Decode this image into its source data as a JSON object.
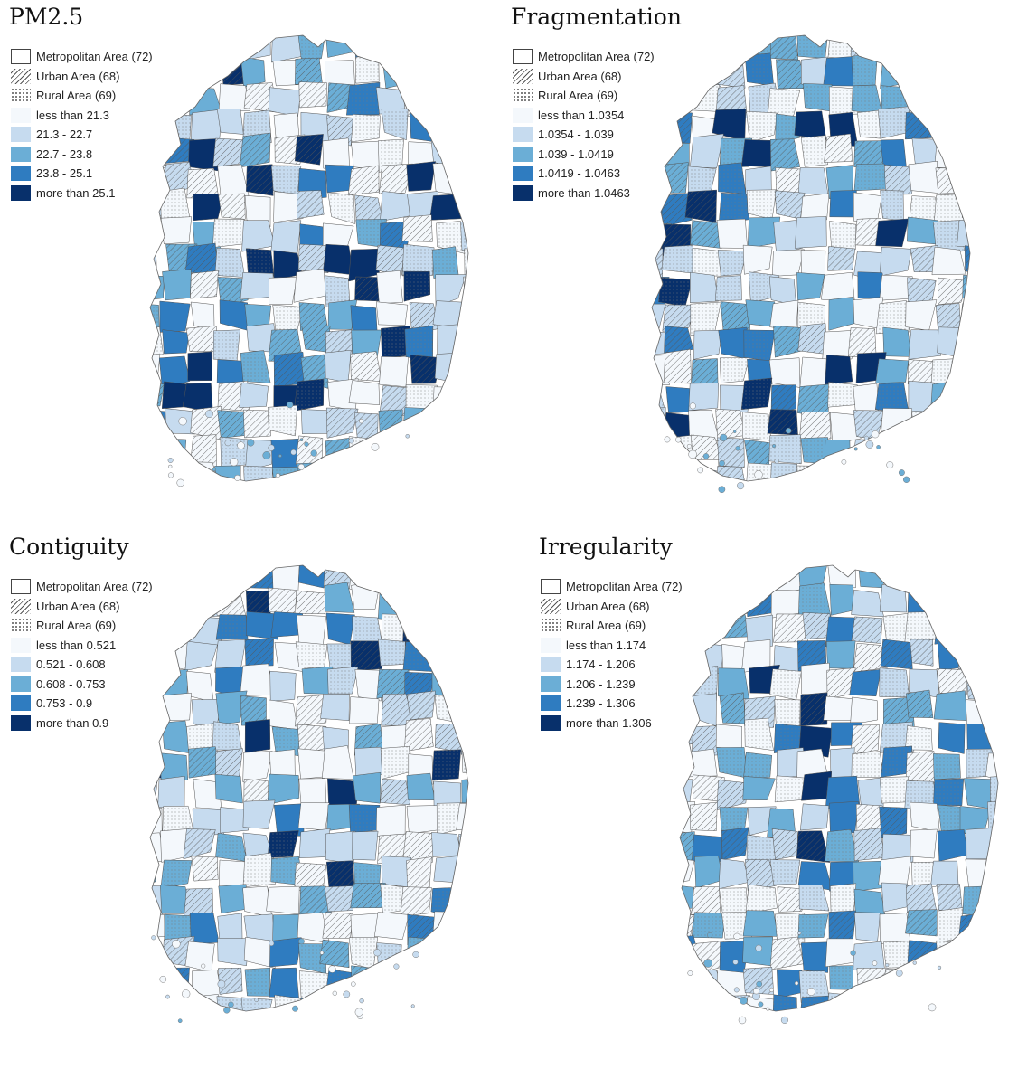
{
  "figure": {
    "panels": [
      {
        "title": "PM2.5",
        "area_legend": [
          {
            "label": "Metropolitan Area (72)",
            "pattern": "outline"
          },
          {
            "label": "Urban Area (68)",
            "pattern": "hatch"
          },
          {
            "label": "Rural Area (69)",
            "pattern": "dots"
          }
        ],
        "classes": [
          {
            "label": "less than 21.3",
            "color": "#f4f8fc"
          },
          {
            "label": "21.3 - 22.7",
            "color": "#c6dbef"
          },
          {
            "label": "22.7 - 23.8",
            "color": "#6baed6"
          },
          {
            "label": "23.8 - 25.1",
            "color": "#2f7cc0"
          },
          {
            "label": "more than 25.1",
            "color": "#08306b"
          }
        ]
      },
      {
        "title": "Fragmentation",
        "area_legend": [
          {
            "label": "Metropolitan Area (72)",
            "pattern": "outline"
          },
          {
            "label": "Urban Area (68)",
            "pattern": "hatch"
          },
          {
            "label": "Rural Area (69)",
            "pattern": "dots"
          }
        ],
        "classes": [
          {
            "label": "less than 1.0354",
            "color": "#f4f8fc"
          },
          {
            "label": "1.0354 - 1.039",
            "color": "#c6dbef"
          },
          {
            "label": "1.039 - 1.0419",
            "color": "#6baed6"
          },
          {
            "label": "1.0419 - 1.0463",
            "color": "#2f7cc0"
          },
          {
            "label": "more than 1.0463",
            "color": "#08306b"
          }
        ]
      },
      {
        "title": "Contiguity",
        "area_legend": [
          {
            "label": "Metropolitan Area (72)",
            "pattern": "outline"
          },
          {
            "label": "Urban Area (68)",
            "pattern": "hatch"
          },
          {
            "label": "Rural Area (69)",
            "pattern": "dots"
          }
        ],
        "classes": [
          {
            "label": "less than 0.521",
            "color": "#f4f8fc"
          },
          {
            "label": "0.521 - 0.608",
            "color": "#c6dbef"
          },
          {
            "label": "0.608 - 0.753",
            "color": "#6baed6"
          },
          {
            "label": "0.753 - 0.9",
            "color": "#2f7cc0"
          },
          {
            "label": "more than 0.9",
            "color": "#08306b"
          }
        ]
      },
      {
        "title": "Irregularity",
        "area_legend": [
          {
            "label": "Metropolitan Area (72)",
            "pattern": "outline"
          },
          {
            "label": "Urban Area (68)",
            "pattern": "hatch"
          },
          {
            "label": "Rural Area (69)",
            "pattern": "dots"
          }
        ],
        "classes": [
          {
            "label": "less than 1.174",
            "color": "#f4f8fc"
          },
          {
            "label": "1.174 - 1.206",
            "color": "#c6dbef"
          },
          {
            "label": "1.206 - 1.239",
            "color": "#6baed6"
          },
          {
            "label": "1.239 - 1.306",
            "color": "#2f7cc0"
          },
          {
            "label": "more than 1.306",
            "color": "#08306b"
          }
        ]
      }
    ]
  }
}
